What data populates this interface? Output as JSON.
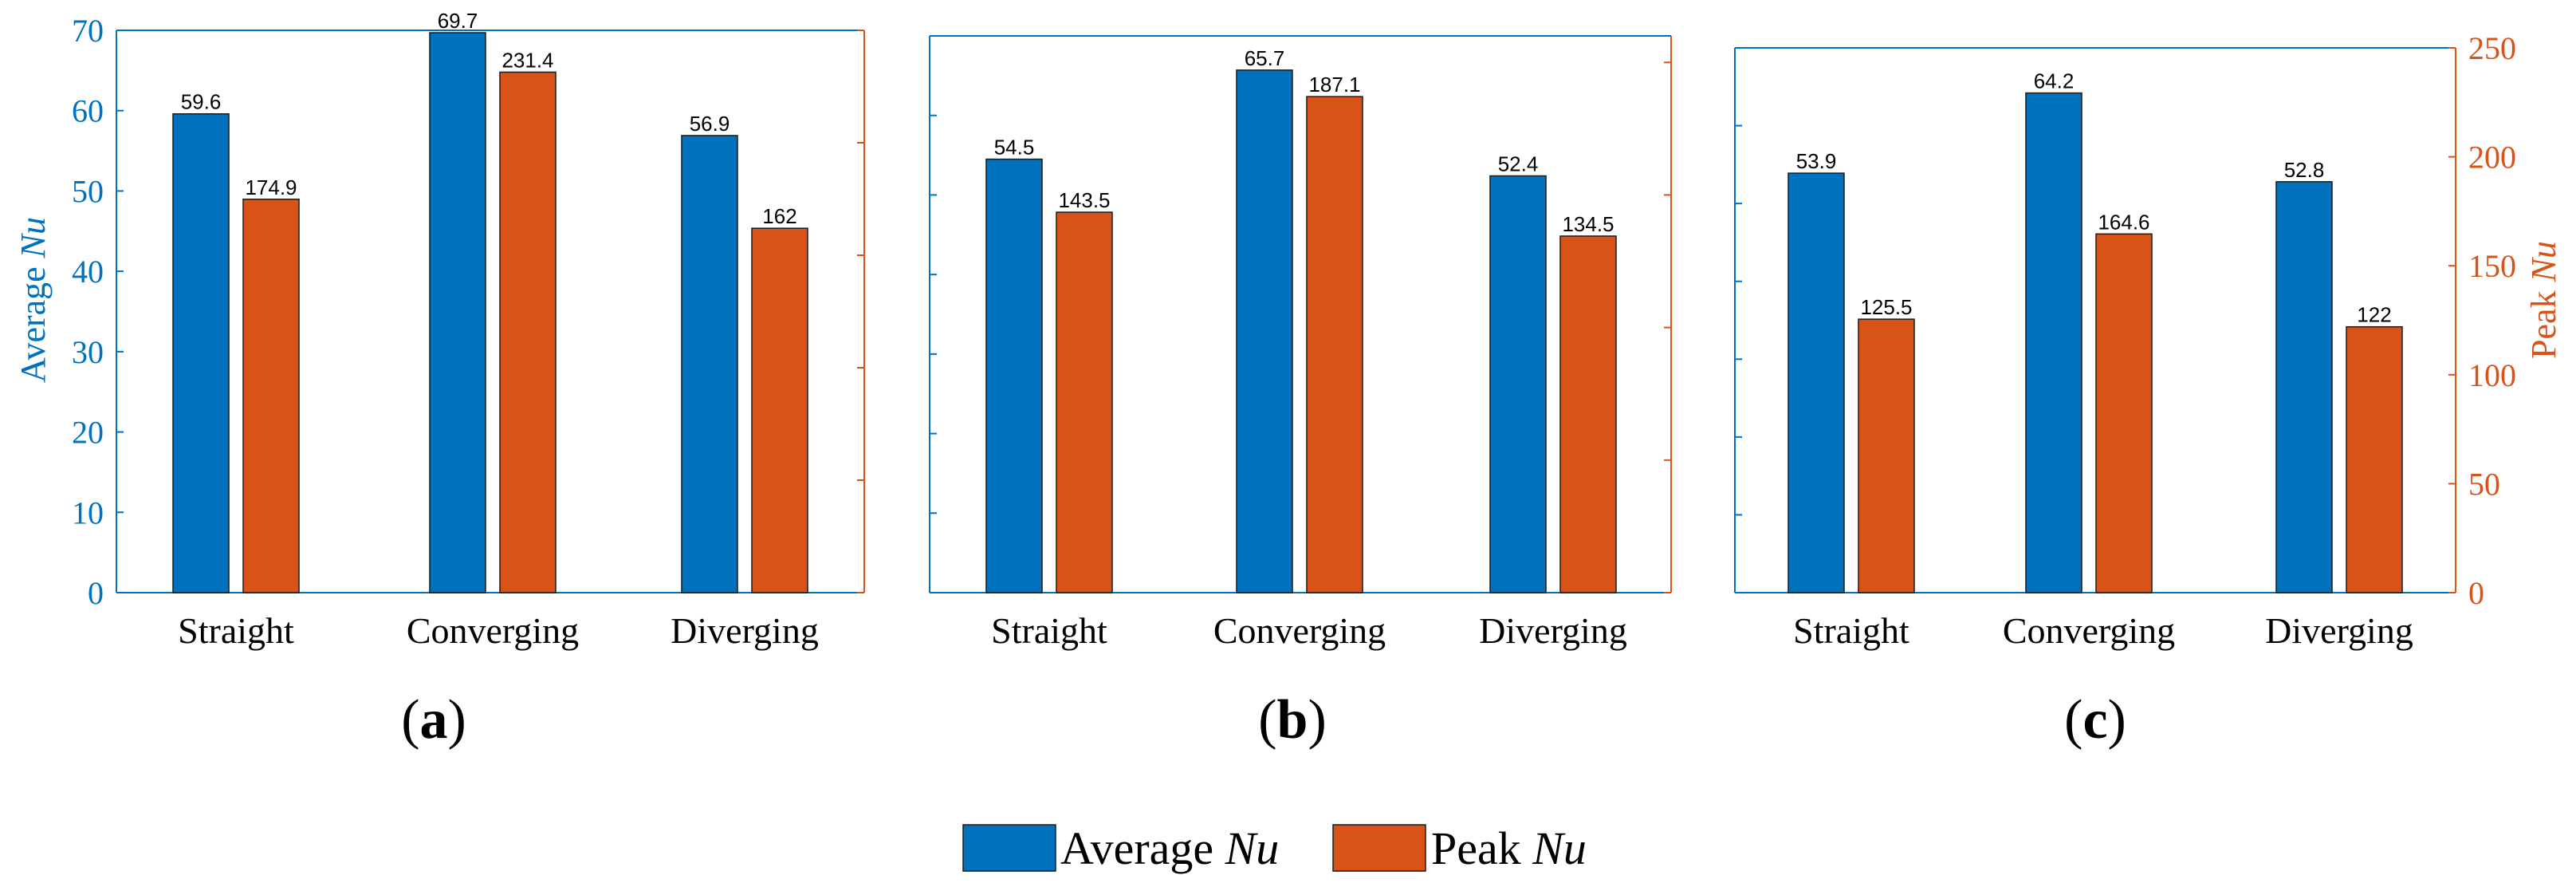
{
  "colors": {
    "average": "#0072BD",
    "peak": "#D95319"
  },
  "left_axis_label": {
    "prefix": "Average ",
    "italic": "Nu"
  },
  "right_axis_label": {
    "prefix": "Peak ",
    "italic": "Nu"
  },
  "legend": [
    {
      "prefix": "Average ",
      "italic": "Nu",
      "color": "#0072BD"
    },
    {
      "prefix": "Peak ",
      "italic": "Nu",
      "color": "#D95319"
    }
  ],
  "chart_data": [
    {
      "type": "bar",
      "panel_label": "a",
      "categories": [
        "Straight",
        "Converging",
        "Diverging"
      ],
      "series": [
        {
          "name": "Average Nu",
          "axis": "left",
          "values": [
            59.6,
            69.7,
            56.9
          ],
          "labels": [
            "59.6",
            "69.7",
            "56.9"
          ]
        },
        {
          "name": "Peak Nu",
          "axis": "right",
          "values": [
            174.9,
            231.4,
            162
          ],
          "labels": [
            "174.9",
            "231.4",
            "162"
          ]
        }
      ],
      "ylim_left": [
        0,
        70
      ],
      "ylim_right": [
        0,
        250
      ],
      "yticks_left": [
        0,
        10,
        20,
        30,
        40,
        50,
        60,
        70
      ],
      "ytick_labels_left": [
        "0",
        "10",
        "20",
        "30",
        "40",
        "50",
        "60",
        "70"
      ],
      "yticks_right": [
        0,
        50,
        100,
        150,
        200,
        250
      ],
      "ytick_labels_right": [],
      "show_left_labels": true,
      "show_right_labels": false
    },
    {
      "type": "bar",
      "panel_label": "b",
      "categories": [
        "Straight",
        "Converging",
        "Diverging"
      ],
      "series": [
        {
          "name": "Average Nu",
          "axis": "left",
          "values": [
            54.5,
            65.7,
            52.4
          ],
          "labels": [
            "54.5",
            "65.7",
            "52.4"
          ]
        },
        {
          "name": "Peak Nu",
          "axis": "right",
          "values": [
            143.5,
            187.1,
            134.5
          ],
          "labels": [
            "143.5",
            "187.1",
            "134.5"
          ]
        }
      ],
      "ylim_left": [
        0,
        70
      ],
      "ylim_right": [
        0,
        210
      ],
      "yticks_left": [
        0,
        10,
        20,
        30,
        40,
        50,
        60,
        70
      ],
      "ytick_labels_left": [],
      "yticks_right": [
        0,
        50,
        100,
        150,
        200
      ],
      "ytick_labels_right": [],
      "show_left_labels": false,
      "show_right_labels": false
    },
    {
      "type": "bar",
      "panel_label": "c",
      "categories": [
        "Straight",
        "Converging",
        "Diverging"
      ],
      "series": [
        {
          "name": "Average Nu",
          "axis": "left",
          "values": [
            53.9,
            64.2,
            52.8
          ],
          "labels": [
            "53.9",
            "64.2",
            "52.8"
          ]
        },
        {
          "name": "Peak Nu",
          "axis": "right",
          "values": [
            125.5,
            164.6,
            122
          ],
          "labels": [
            "125.5",
            "164.6",
            "122"
          ]
        }
      ],
      "ylim_left": [
        0,
        70
      ],
      "ylim_right": [
        0,
        250
      ],
      "yticks_left": [
        0,
        10,
        20,
        30,
        40,
        50,
        60,
        70
      ],
      "ytick_labels_left": [],
      "yticks_right": [
        0,
        50,
        100,
        150,
        200,
        250
      ],
      "ytick_labels_right": [
        "0",
        "50",
        "100",
        "150",
        "200",
        "250"
      ],
      "show_left_labels": false,
      "show_right_labels": true
    }
  ]
}
